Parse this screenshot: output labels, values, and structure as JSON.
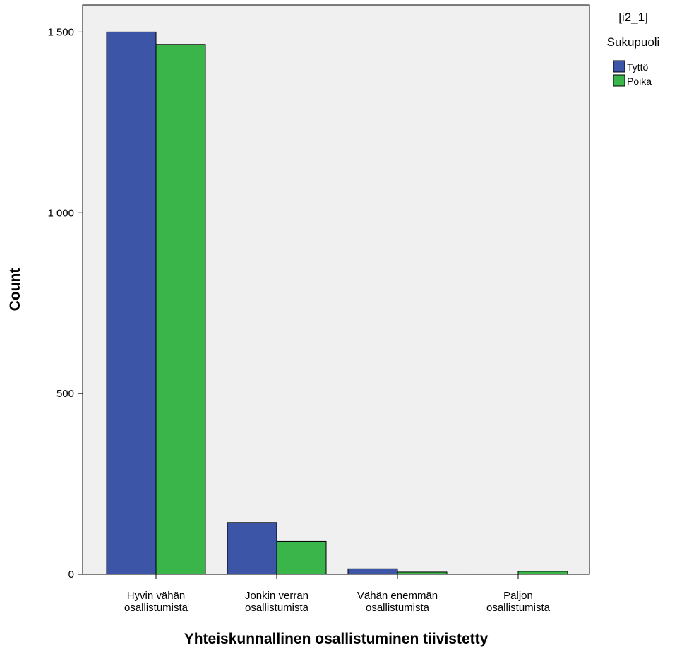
{
  "chart_data": {
    "type": "bar",
    "categories": [
      [
        "Hyvin vähän",
        "osallistumista"
      ],
      [
        "Jonkin verran",
        "osallistumista"
      ],
      [
        "Vähän enemmän",
        "osallistumista"
      ],
      [
        "Paljon",
        "osallistumista"
      ]
    ],
    "series": [
      {
        "name": "Tyttö",
        "color": "#3d55a6",
        "values": [
          1500,
          143,
          15,
          1
        ]
      },
      {
        "name": "Poika",
        "color": "#39b54a",
        "values": [
          1466,
          91,
          6,
          8
        ]
      }
    ],
    "xlabel": "Yhteiskunnallinen osallistuminen tiivistetty",
    "ylabel": "Count",
    "ylim": [
      0,
      1575
    ],
    "yticks": [
      {
        "value": 0,
        "label": "0"
      },
      {
        "value": 500,
        "label": "500"
      },
      {
        "value": 1000,
        "label": "1 000"
      },
      {
        "value": 1500,
        "label": "1 500"
      }
    ],
    "grid": false,
    "plot_background": "#f0f0f0",
    "legend": {
      "position": "top-right",
      "title": [
        "[i2_1]",
        "Sukupuoli"
      ]
    }
  }
}
